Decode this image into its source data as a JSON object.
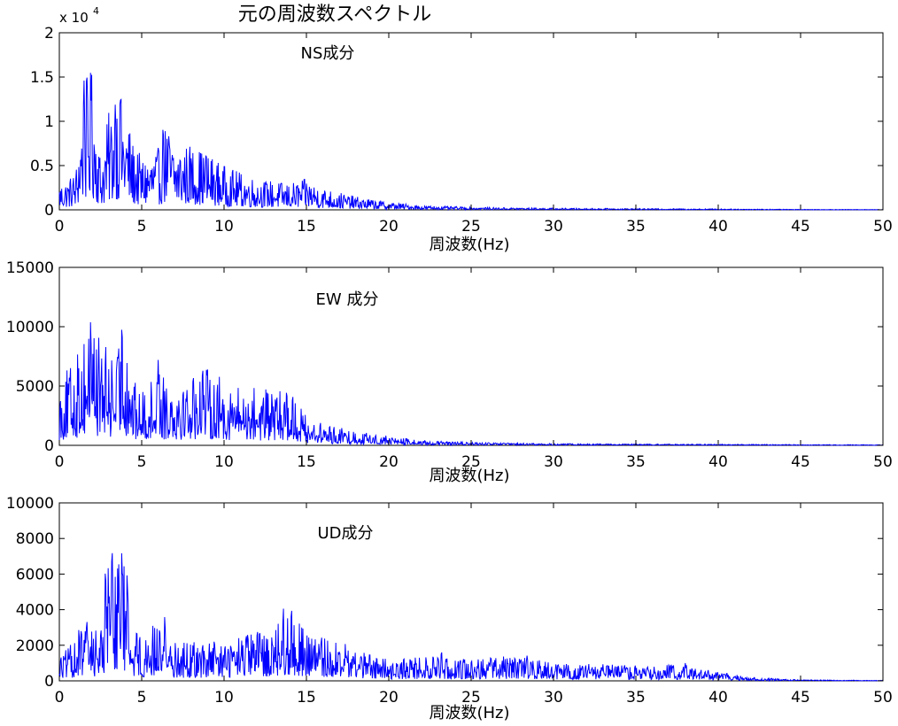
{
  "figure": {
    "title": "元の周波数スペクトル"
  },
  "chart_data": [
    {
      "type": "line",
      "annotation": "NS成分",
      "xlabel": "周波数(Hz)",
      "ylabel": "",
      "xlim": [
        0,
        50
      ],
      "ylim": [
        0,
        20000
      ],
      "y_exponent_label": "x 10",
      "y_exponent_power": "4",
      "grid": false,
      "xticks": [
        "0",
        "5",
        "10",
        "15",
        "20",
        "25",
        "30",
        "35",
        "40",
        "45",
        "50"
      ],
      "yticks": [
        "0",
        "0.5",
        "1",
        "1.5",
        "2"
      ],
      "ytick_values": [
        0,
        5000,
        10000,
        15000,
        20000
      ],
      "color": "#0000ff",
      "envelope_x": [
        0,
        0.5,
        1.0,
        1.5,
        2.0,
        2.5,
        3.0,
        3.5,
        4.0,
        4.5,
        5.0,
        6.0,
        6.5,
        7.0,
        8.0,
        9.0,
        10.0,
        12.0,
        14.0,
        15.0,
        16.0,
        18.0,
        20.0,
        22.0,
        25.0,
        30.0,
        35.0,
        40.0,
        45.0,
        50.0
      ],
      "envelope_y": [
        3000,
        3500,
        4500,
        14500,
        16000,
        6000,
        11000,
        14000,
        11500,
        7500,
        6000,
        7000,
        10000,
        7500,
        7500,
        6500,
        5000,
        3500,
        3000,
        3500,
        2500,
        1500,
        900,
        500,
        300,
        200,
        150,
        120,
        60,
        40
      ],
      "peaks": [
        [
          1.5,
          14600
        ],
        [
          1.9,
          16000
        ],
        [
          3.4,
          12600
        ],
        [
          3.7,
          14000
        ],
        [
          6.3,
          10200
        ],
        [
          8.9,
          6500
        ]
      ]
    },
    {
      "type": "line",
      "annotation": "EW 成分",
      "xlabel": "周波数(Hz)",
      "ylabel": "",
      "xlim": [
        0,
        50
      ],
      "ylim": [
        0,
        15000
      ],
      "grid": false,
      "xticks": [
        "0",
        "5",
        "10",
        "15",
        "20",
        "25",
        "30",
        "35",
        "40",
        "45",
        "50"
      ],
      "yticks": [
        "0",
        "5000",
        "10000",
        "15000"
      ],
      "ytick_values": [
        0,
        5000,
        10000,
        15000
      ],
      "color": "#0000ff",
      "envelope_x": [
        0,
        0.5,
        1.0,
        1.5,
        2.0,
        2.5,
        3.0,
        3.5,
        4.0,
        4.5,
        5.0,
        6.0,
        7.0,
        8.0,
        9.0,
        10.0,
        11.0,
        12.0,
        13.0,
        14.0,
        15.0,
        16.0,
        18.0,
        20.0,
        22.0,
        25.0,
        30.0,
        35.0,
        40.0,
        45.0,
        50.0
      ],
      "envelope_y": [
        5000,
        6500,
        7500,
        9500,
        11000,
        9000,
        8000,
        8000,
        10500,
        5500,
        4500,
        6500,
        6000,
        6000,
        6500,
        5500,
        5000,
        5000,
        4500,
        4800,
        2500,
        1800,
        1200,
        800,
        400,
        250,
        150,
        120,
        100,
        70,
        50
      ],
      "peaks": [
        [
          1.9,
          11000
        ],
        [
          3.8,
          11000
        ],
        [
          6.0,
          7200
        ],
        [
          8.7,
          7100
        ],
        [
          13.8,
          5000
        ]
      ]
    },
    {
      "type": "line",
      "annotation": "UD成分",
      "xlabel": "周波数(Hz)",
      "ylabel": "",
      "xlim": [
        0,
        50
      ],
      "ylim": [
        0,
        10000
      ],
      "grid": false,
      "xticks": [
        "0",
        "5",
        "10",
        "15",
        "20",
        "25",
        "30",
        "35",
        "40",
        "45",
        "50"
      ],
      "yticks": [
        "0",
        "2000",
        "4000",
        "6000",
        "8000",
        "10000"
      ],
      "ytick_values": [
        0,
        2000,
        4000,
        6000,
        8000,
        10000
      ],
      "color": "#0000ff",
      "envelope_x": [
        0,
        0.5,
        1.0,
        1.5,
        2.0,
        2.5,
        3.0,
        3.5,
        4.0,
        4.5,
        5.0,
        6.0,
        7.0,
        8.0,
        10.0,
        12.0,
        13.0,
        14.0,
        15.0,
        17.0,
        20.0,
        23.0,
        25.0,
        28.0,
        30.0,
        35.0,
        38.0,
        40.0,
        42.0,
        45.0,
        50.0
      ],
      "envelope_y": [
        1500,
        1800,
        2500,
        3500,
        3200,
        3000,
        7000,
        8000,
        7000,
        3500,
        2500,
        3500,
        2200,
        2200,
        2200,
        2800,
        3000,
        4200,
        2800,
        2200,
        1200,
        1400,
        1300,
        1400,
        1000,
        900,
        900,
        500,
        200,
        60,
        30
      ],
      "peaks": [
        [
          2.8,
          6800
        ],
        [
          3.2,
          8100
        ],
        [
          3.8,
          7300
        ],
        [
          6.4,
          3800
        ],
        [
          13.6,
          4300
        ],
        [
          23.2,
          1800
        ],
        [
          28.4,
          1500
        ],
        [
          38.0,
          1000
        ]
      ]
    }
  ]
}
